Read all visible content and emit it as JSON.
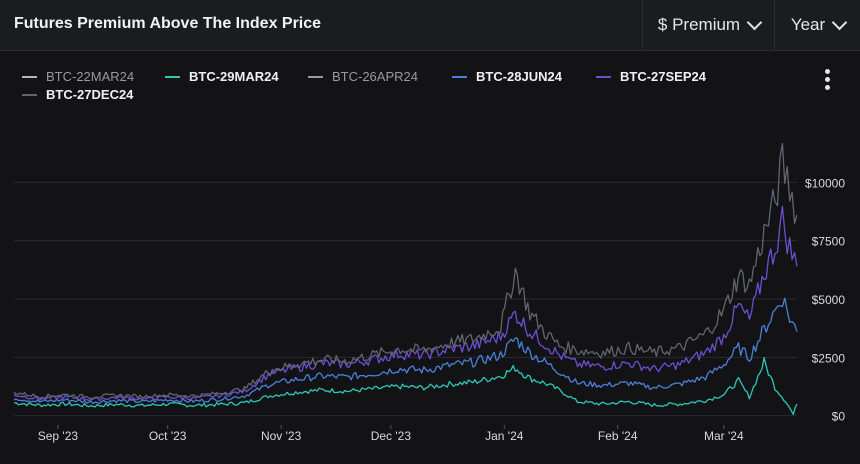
{
  "header": {
    "title": "Futures Premium Above The Index Price",
    "metric_dropdown": "$ Premium",
    "range_dropdown": "Year"
  },
  "menu_icon": "kebab-menu-icon",
  "chart_data": {
    "type": "line",
    "title": "Futures Premium Above The Index Price",
    "xlabel": "",
    "ylabel": "",
    "x_ticks": [
      "Sep '23",
      "Oct '23",
      "Nov '23",
      "Dec '23",
      "Jan '24",
      "Feb '24",
      "Mar '24"
    ],
    "y_ticks": [
      "$0",
      "$2500",
      "$5000",
      "$7500",
      "$10000"
    ],
    "ylim": [
      -400,
      12500
    ],
    "grid": true,
    "legend": "top-left",
    "x_start": "2023-08-20",
    "x_end": "2024-03-21",
    "series": [
      {
        "name": "BTC-22MAR24",
        "color": "#b4b4b4",
        "visible": false,
        "points": [
          [
            "2023-08-20",
            700
          ],
          [
            "2023-09-15",
            650
          ],
          [
            "2023-10-15",
            620
          ],
          [
            "2023-11-15",
            900
          ],
          [
            "2023-12-15",
            1100
          ],
          [
            "2024-01-10",
            1500
          ],
          [
            "2024-02-10",
            800
          ],
          [
            "2024-03-10",
            600
          ],
          [
            "2024-03-21",
            200
          ]
        ]
      },
      {
        "name": "BTC-29MAR24",
        "color": "#2ec7b6",
        "visible": true,
        "points": [
          [
            "2023-08-20",
            550
          ],
          [
            "2023-08-27",
            450
          ],
          [
            "2023-09-03",
            500
          ],
          [
            "2023-09-10",
            420
          ],
          [
            "2023-09-17",
            480
          ],
          [
            "2023-09-24",
            430
          ],
          [
            "2023-10-01",
            500
          ],
          [
            "2023-10-08",
            440
          ],
          [
            "2023-10-15",
            480
          ],
          [
            "2023-10-22",
            550
          ],
          [
            "2023-10-29",
            850
          ],
          [
            "2023-11-05",
            1000
          ],
          [
            "2023-11-12",
            1100
          ],
          [
            "2023-11-19",
            1050
          ],
          [
            "2023-11-26",
            1150
          ],
          [
            "2023-12-03",
            1250
          ],
          [
            "2023-12-10",
            1200
          ],
          [
            "2023-12-17",
            1350
          ],
          [
            "2023-12-24",
            1450
          ],
          [
            "2023-12-31",
            1700
          ],
          [
            "2024-01-04",
            2050
          ],
          [
            "2024-01-08",
            1600
          ],
          [
            "2024-01-12",
            1400
          ],
          [
            "2024-01-16",
            1100
          ],
          [
            "2024-01-21",
            600
          ],
          [
            "2024-01-28",
            500
          ],
          [
            "2024-02-04",
            600
          ],
          [
            "2024-02-11",
            450
          ],
          [
            "2024-02-18",
            500
          ],
          [
            "2024-02-25",
            650
          ],
          [
            "2024-03-01",
            900
          ],
          [
            "2024-03-05",
            1500
          ],
          [
            "2024-03-08",
            800
          ],
          [
            "2024-03-12",
            2300
          ],
          [
            "2024-03-15",
            1200
          ],
          [
            "2024-03-18",
            600
          ],
          [
            "2024-03-20",
            50
          ],
          [
            "2024-03-21",
            500
          ]
        ]
      },
      {
        "name": "BTC-26APR24",
        "color": "#9a9a9a",
        "visible": false,
        "points": [
          [
            "2023-08-20",
            800
          ],
          [
            "2023-09-15",
            750
          ],
          [
            "2023-10-15",
            700
          ],
          [
            "2023-11-15",
            1300
          ],
          [
            "2023-12-15",
            1600
          ],
          [
            "2024-01-10",
            2500
          ],
          [
            "2024-02-10",
            1200
          ],
          [
            "2024-03-10",
            1500
          ],
          [
            "2024-03-21",
            1000
          ]
        ]
      },
      {
        "name": "BTC-28JUN24",
        "color": "#4a80d8",
        "visible": true,
        "points": [
          [
            "2023-08-20",
            750
          ],
          [
            "2023-08-27",
            600
          ],
          [
            "2023-09-03",
            680
          ],
          [
            "2023-09-10",
            580
          ],
          [
            "2023-09-17",
            650
          ],
          [
            "2023-09-24",
            600
          ],
          [
            "2023-10-01",
            680
          ],
          [
            "2023-10-08",
            620
          ],
          [
            "2023-10-15",
            700
          ],
          [
            "2023-10-22",
            850
          ],
          [
            "2023-10-29",
            1350
          ],
          [
            "2023-11-05",
            1550
          ],
          [
            "2023-11-12",
            1700
          ],
          [
            "2023-11-19",
            1650
          ],
          [
            "2023-11-26",
            1800
          ],
          [
            "2023-12-03",
            2000
          ],
          [
            "2023-12-10",
            1950
          ],
          [
            "2023-12-17",
            2150
          ],
          [
            "2023-12-24",
            2300
          ],
          [
            "2023-12-31",
            2600
          ],
          [
            "2024-01-04",
            3300
          ],
          [
            "2024-01-08",
            2700
          ],
          [
            "2024-01-12",
            2300
          ],
          [
            "2024-01-16",
            1900
          ],
          [
            "2024-01-21",
            1400
          ],
          [
            "2024-01-28",
            1300
          ],
          [
            "2024-02-04",
            1400
          ],
          [
            "2024-02-11",
            1200
          ],
          [
            "2024-02-18",
            1350
          ],
          [
            "2024-02-25",
            1650
          ],
          [
            "2024-03-01",
            2200
          ],
          [
            "2024-03-05",
            2900
          ],
          [
            "2024-03-08",
            2500
          ],
          [
            "2024-03-12",
            3700
          ],
          [
            "2024-03-15",
            4500
          ],
          [
            "2024-03-17",
            5100
          ],
          [
            "2024-03-19",
            4200
          ],
          [
            "2024-03-21",
            3600
          ]
        ]
      },
      {
        "name": "BTC-27SEP24",
        "color": "#6b4fd2",
        "visible": true,
        "points": [
          [
            "2023-08-20",
            900
          ],
          [
            "2023-08-27",
            720
          ],
          [
            "2023-09-03",
            800
          ],
          [
            "2023-09-10",
            700
          ],
          [
            "2023-09-17",
            780
          ],
          [
            "2023-09-24",
            720
          ],
          [
            "2023-10-01",
            800
          ],
          [
            "2023-10-08",
            750
          ],
          [
            "2023-10-15",
            850
          ],
          [
            "2023-10-22",
            1050
          ],
          [
            "2023-10-29",
            1800
          ],
          [
            "2023-11-05",
            2050
          ],
          [
            "2023-11-12",
            2250
          ],
          [
            "2023-11-19",
            2200
          ],
          [
            "2023-11-26",
            2400
          ],
          [
            "2023-12-03",
            2650
          ],
          [
            "2023-12-10",
            2600
          ],
          [
            "2023-12-17",
            2850
          ],
          [
            "2023-12-24",
            3000
          ],
          [
            "2023-12-31",
            3400
          ],
          [
            "2024-01-04",
            4400
          ],
          [
            "2024-01-08",
            3600
          ],
          [
            "2024-01-12",
            3100
          ],
          [
            "2024-01-16",
            2600
          ],
          [
            "2024-01-21",
            2200
          ],
          [
            "2024-01-28",
            2100
          ],
          [
            "2024-02-04",
            2250
          ],
          [
            "2024-02-11",
            2000
          ],
          [
            "2024-02-18",
            2200
          ],
          [
            "2024-02-25",
            2700
          ],
          [
            "2024-03-01",
            3400
          ],
          [
            "2024-03-05",
            4700
          ],
          [
            "2024-03-08",
            4100
          ],
          [
            "2024-03-12",
            6100
          ],
          [
            "2024-03-15",
            7200
          ],
          [
            "2024-03-17",
            8400
          ],
          [
            "2024-03-19",
            7200
          ],
          [
            "2024-03-21",
            6400
          ]
        ]
      },
      {
        "name": "BTC-27DEC24",
        "color": "#5f6670",
        "visible": true,
        "points": [
          [
            "2023-08-20",
            1000
          ],
          [
            "2023-08-27",
            820
          ],
          [
            "2023-09-03",
            900
          ],
          [
            "2023-09-10",
            800
          ],
          [
            "2023-09-17",
            880
          ],
          [
            "2023-09-24",
            820
          ],
          [
            "2023-10-01",
            900
          ],
          [
            "2023-10-08",
            850
          ],
          [
            "2023-10-15",
            960
          ],
          [
            "2023-10-22",
            1150
          ],
          [
            "2023-10-29",
            1950
          ],
          [
            "2023-11-05",
            2200
          ],
          [
            "2023-11-12",
            2400
          ],
          [
            "2023-11-19",
            2350
          ],
          [
            "2023-11-26",
            2600
          ],
          [
            "2023-12-03",
            2850
          ],
          [
            "2023-12-10",
            2800
          ],
          [
            "2023-12-17",
            3100
          ],
          [
            "2023-12-24",
            3300
          ],
          [
            "2023-12-31",
            3800
          ],
          [
            "2024-01-04",
            6200
          ],
          [
            "2024-01-08",
            4400
          ],
          [
            "2024-01-12",
            3600
          ],
          [
            "2024-01-16",
            3000
          ],
          [
            "2024-01-21",
            2800
          ],
          [
            "2024-01-28",
            2700
          ],
          [
            "2024-02-04",
            2900
          ],
          [
            "2024-02-11",
            2700
          ],
          [
            "2024-02-18",
            2900
          ],
          [
            "2024-02-25",
            3500
          ],
          [
            "2024-03-01",
            4500
          ],
          [
            "2024-03-05",
            6000
          ],
          [
            "2024-03-08",
            5600
          ],
          [
            "2024-03-12",
            7800
          ],
          [
            "2024-03-15",
            9200
          ],
          [
            "2024-03-17",
            10800
          ],
          [
            "2024-03-19",
            9800
          ],
          [
            "2024-03-21",
            8600
          ]
        ]
      }
    ]
  }
}
